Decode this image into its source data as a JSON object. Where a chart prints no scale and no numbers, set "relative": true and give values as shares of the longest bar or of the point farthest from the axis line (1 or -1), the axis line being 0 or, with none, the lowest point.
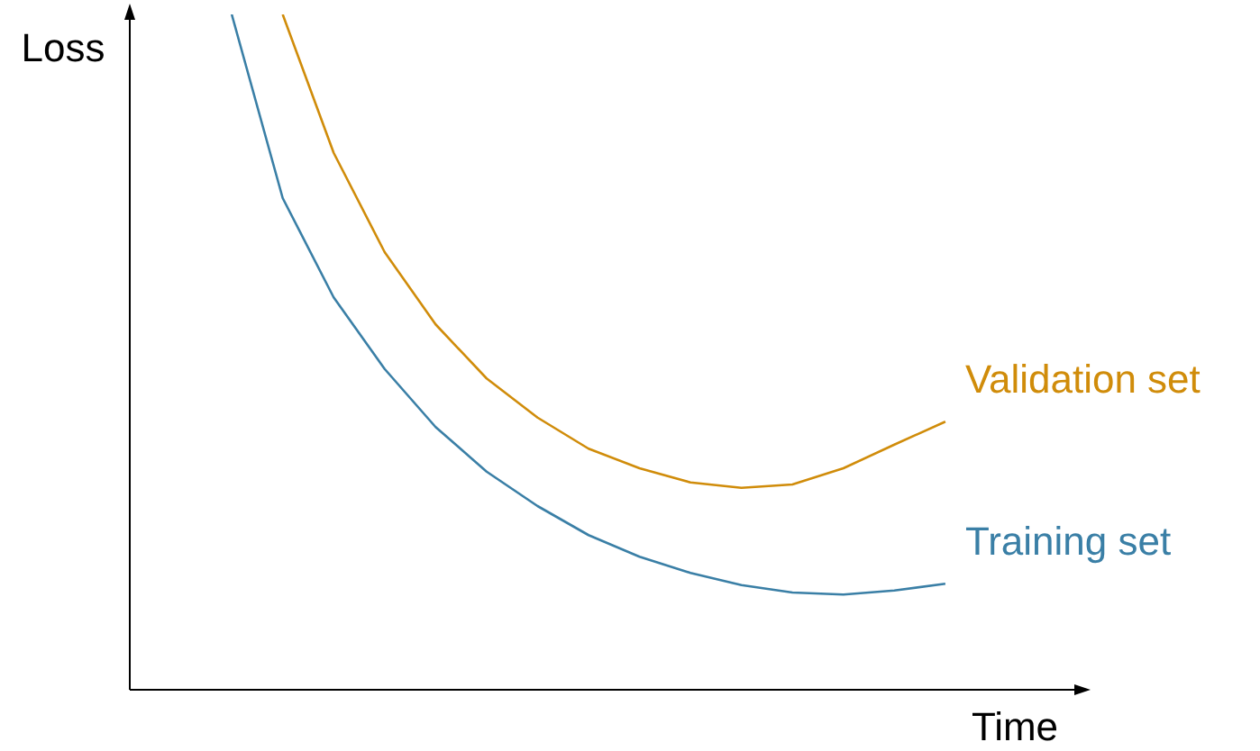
{
  "chart_data": {
    "type": "line",
    "relative": true,
    "xlabel": "Time",
    "ylabel": "Loss",
    "categories": [
      null,
      null,
      null,
      null,
      null,
      null,
      null,
      null,
      null,
      null,
      null,
      null,
      null,
      null,
      null,
      null,
      null,
      null,
      null
    ],
    "series": [
      {
        "name": "Validation set",
        "color": "#d08c0a",
        "values": [
          null,
          null,
          null,
          1.0,
          0.795,
          0.648,
          0.541,
          0.461,
          0.403,
          0.357,
          0.328,
          0.307,
          0.299,
          0.304,
          0.328,
          0.363,
          0.397,
          null,
          null
        ]
      },
      {
        "name": "Training set",
        "color": "#3a7fa6",
        "values": [
          null,
          null,
          1.0,
          0.728,
          0.581,
          0.475,
          0.389,
          0.323,
          0.272,
          0.229,
          0.197,
          0.173,
          0.155,
          0.144,
          0.141,
          0.147,
          0.157,
          null,
          null
        ]
      }
    ],
    "marker": "none",
    "line_style": "solid"
  }
}
